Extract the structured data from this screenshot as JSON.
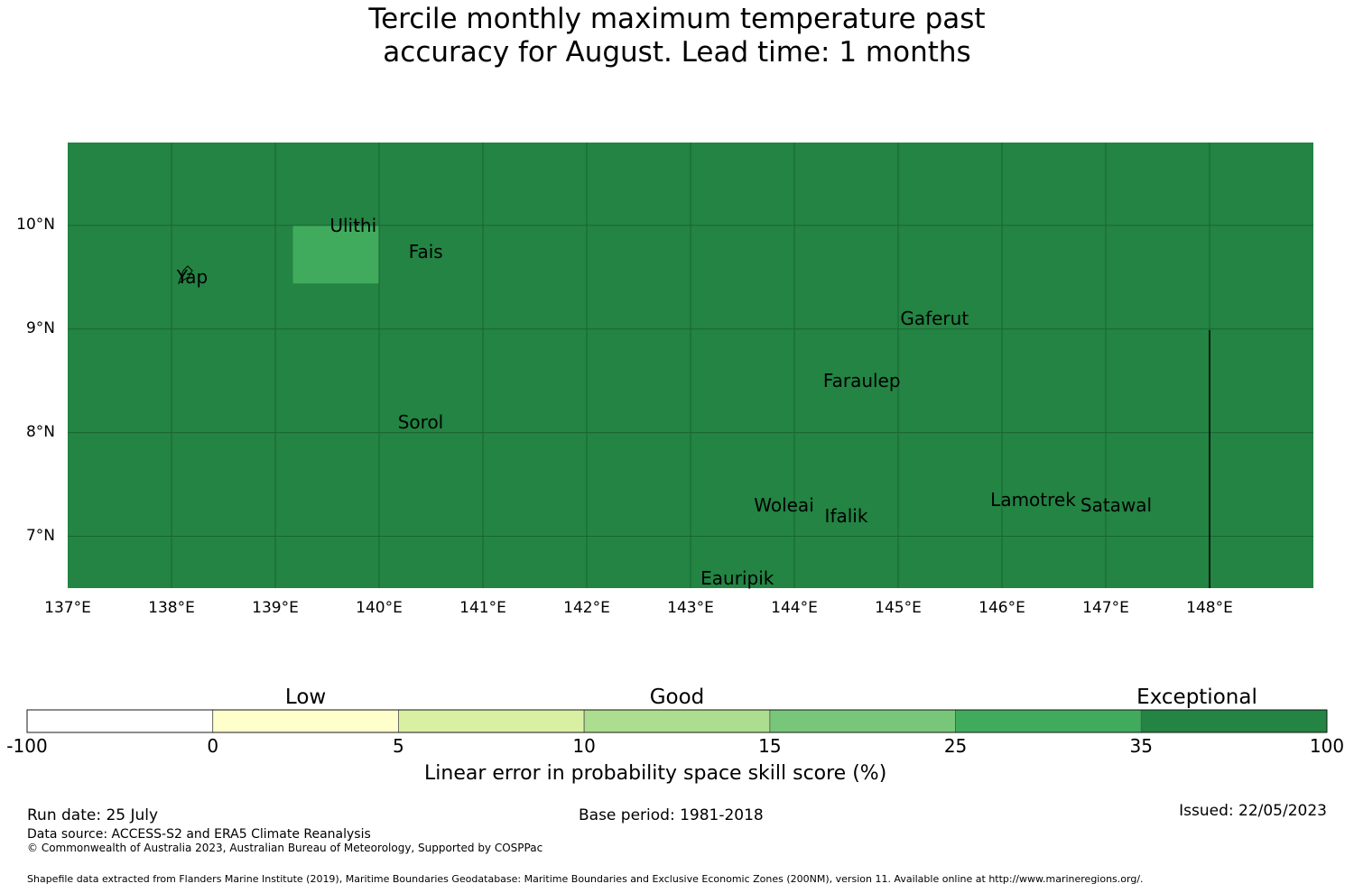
{
  "title": {
    "line1": "Tercile monthly maximum temperature past",
    "line2": "accuracy for August. Lead time: 1 months"
  },
  "map": {
    "lon_ticks": [
      "137°E",
      "138°E",
      "139°E",
      "140°E",
      "141°E",
      "142°E",
      "143°E",
      "144°E",
      "145°E",
      "146°E",
      "147°E",
      "148°E"
    ],
    "lat_ticks": [
      "10°N",
      "9°N",
      "8°N",
      "7°N"
    ],
    "extent": {
      "lon_min": 137,
      "lon_max": 149,
      "lat_min": 6.5,
      "lat_max": 10.8
    },
    "base_color": "#238443",
    "cells": [
      {
        "lon_min": 139.17,
        "lon_max": 140.0,
        "lat_min": 9.44,
        "lat_max": 10.0,
        "color": "#41ab5d",
        "category": "25-35"
      }
    ],
    "places": [
      {
        "name": "Ulithi",
        "lon": 139.75,
        "lat": 10.0
      },
      {
        "name": "Fais",
        "lon": 140.45,
        "lat": 9.75
      },
      {
        "name": "Yap",
        "lon": 138.2,
        "lat": 9.5
      },
      {
        "name": "Gaferut",
        "lon": 145.35,
        "lat": 9.1
      },
      {
        "name": "Faraulep",
        "lon": 144.65,
        "lat": 8.5
      },
      {
        "name": "Sorol",
        "lon": 140.4,
        "lat": 8.1
      },
      {
        "name": "Woleai",
        "lon": 143.9,
        "lat": 7.3
      },
      {
        "name": "Ifalik",
        "lon": 144.5,
        "lat": 7.2
      },
      {
        "name": "Lamotrek",
        "lon": 146.3,
        "lat": 7.35
      },
      {
        "name": "Satawal",
        "lon": 147.1,
        "lat": 7.3
      },
      {
        "name": "Eauripik",
        "lon": 143.45,
        "lat": 6.6
      }
    ]
  },
  "legend": {
    "category_labels": [
      "Low",
      "Good",
      "Exceptional"
    ],
    "tick_labels": [
      "-100",
      "0",
      "5",
      "10",
      "15",
      "25",
      "35",
      "100"
    ],
    "colors": [
      "#ffffff",
      "#ffffcc",
      "#d9f0a3",
      "#addd8e",
      "#78c679",
      "#41ab5d",
      "#238443"
    ],
    "title": "Linear error in probability space skill score (%)"
  },
  "footer": {
    "run_date": "Run date: 25 July",
    "base_period": "Base period: 1981-2018",
    "issued": "Issued: 22/05/2023",
    "data_source": "Data source: ACCESS-S2 and ERA5 Climate Reanalysis",
    "copyright": "© Commonwealth of Australia 2023, Australian Bureau of Meteorology, Supported by COSPPac",
    "shapefile": "Shapefile data extracted from Flanders Marine Institute (2019), Maritime Boundaries Geodatabase: Maritime Boundaries and Exclusive Economic Zones (200NM), version 11. Available online at http://www.marineregions.org/."
  }
}
